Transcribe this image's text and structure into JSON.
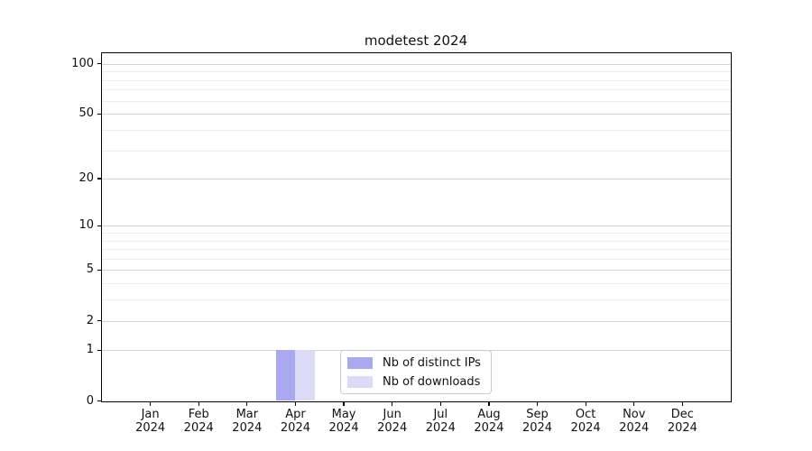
{
  "chart_data": {
    "type": "bar",
    "title": "modetest 2024",
    "categories": [
      "Jan",
      "Feb",
      "Mar",
      "Apr",
      "May",
      "Jun",
      "Jul",
      "Aug",
      "Sep",
      "Oct",
      "Nov",
      "Dec"
    ],
    "x_tick_year": "2024",
    "series": [
      {
        "name": "Nb of distinct IPs",
        "color": "#a9a9f0",
        "values": [
          0,
          0,
          0,
          1,
          0,
          0,
          0,
          0,
          0,
          0,
          0,
          0
        ]
      },
      {
        "name": "Nb of downloads",
        "color": "#dbdbf8",
        "values": [
          0,
          0,
          0,
          1,
          0,
          0,
          0,
          0,
          0,
          0,
          0,
          0
        ]
      }
    ],
    "y_scale": "log1p",
    "y_ticks": [
      0,
      1,
      2,
      5,
      10,
      20,
      50,
      100
    ],
    "y_minor_gridlines": [
      3,
      4,
      6,
      7,
      8,
      9,
      30,
      40,
      60,
      70,
      80,
      90
    ],
    "ylim": [
      0,
      116
    ],
    "grid": true,
    "legend_position": "lower center",
    "colors": {
      "major_grid": "#d2d2d2",
      "minor_grid": "#ececec",
      "axis": "#000000",
      "background": "#ffffff"
    }
  }
}
